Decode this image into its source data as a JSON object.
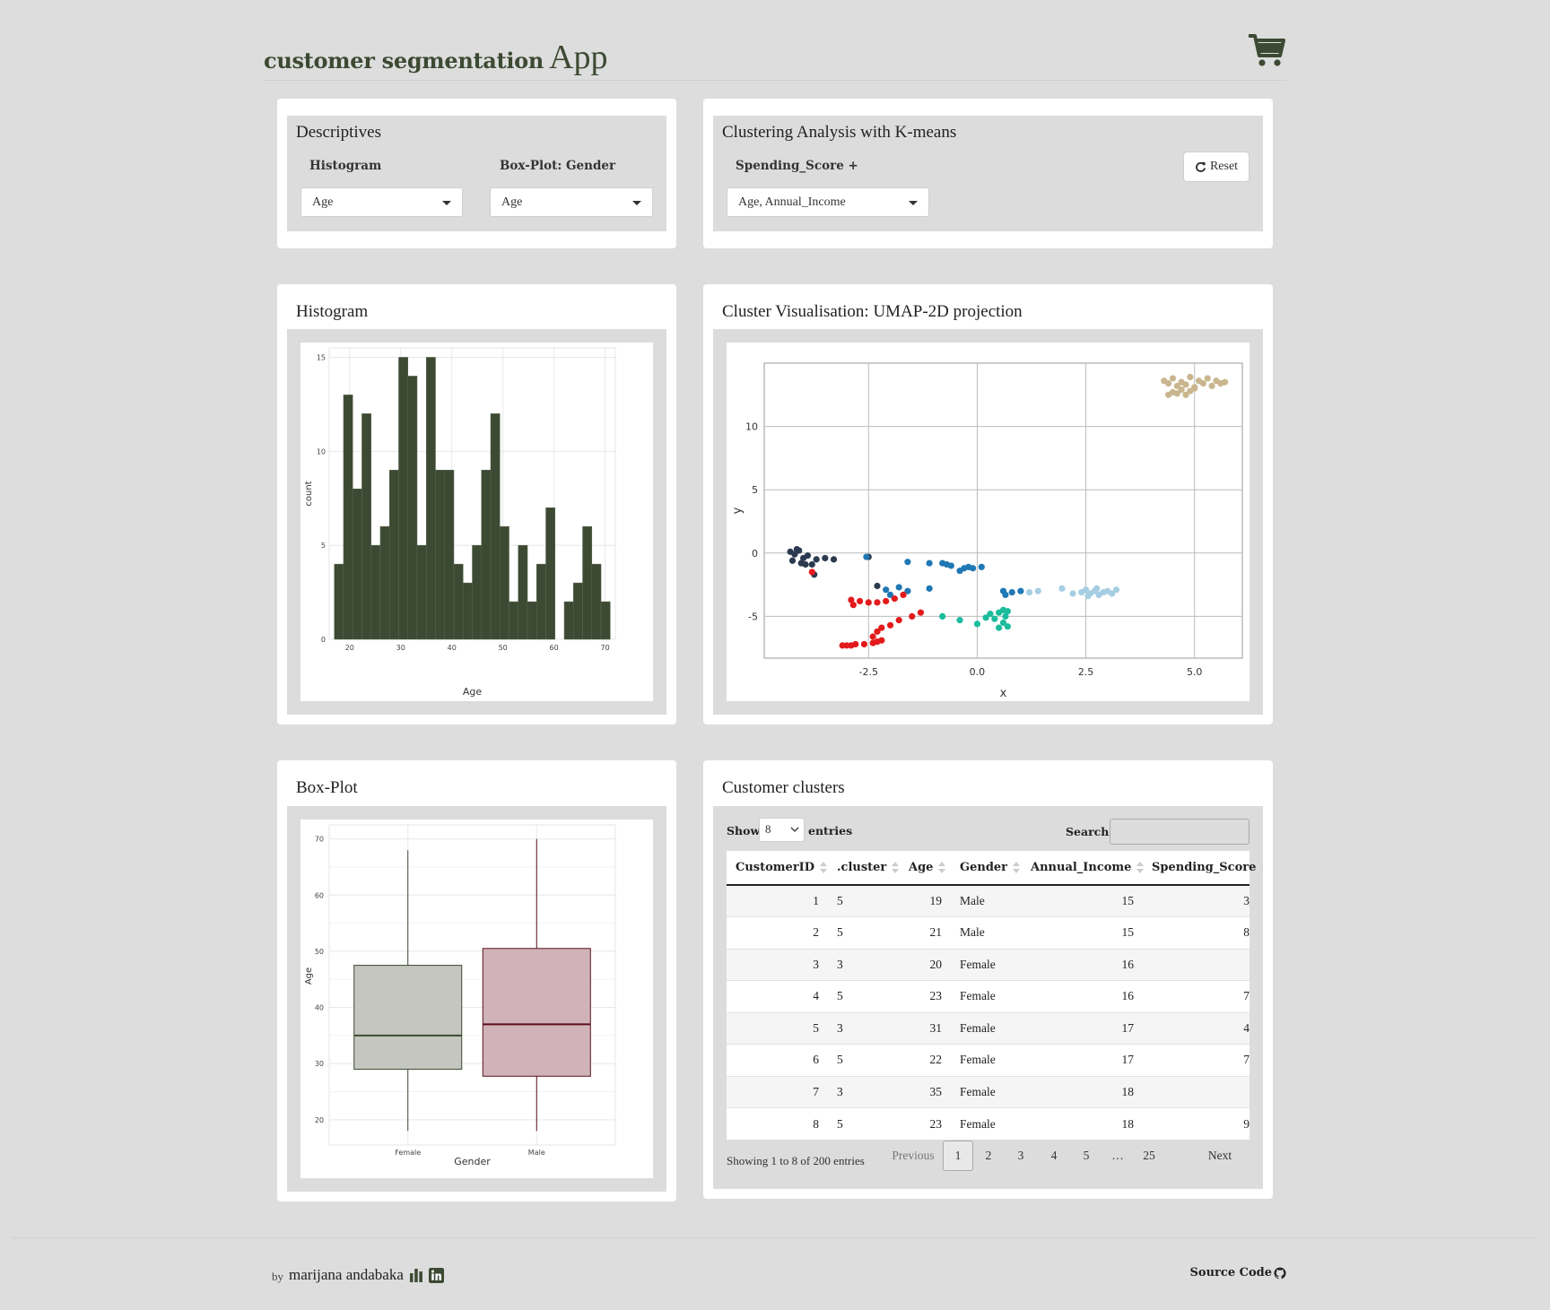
{
  "app": {
    "title_bold": "customer segmentation",
    "title_rest": "App"
  },
  "descriptives": {
    "title": "Descriptives",
    "hist_label": "Histogram",
    "box_label": "Box-Plot: Gender",
    "hist_value": "Age",
    "box_value": "Age"
  },
  "clustering": {
    "title": "Clustering Analysis with K-means",
    "var_label": "Spending_Score +",
    "var_value": "Age, Annual_Income",
    "reset_label": "Reset"
  },
  "histogram_card": {
    "title": "Histogram"
  },
  "umap_card": {
    "title": "Cluster Visualisation: UMAP-2D projection"
  },
  "boxplot_card": {
    "title": "Box-Plot"
  },
  "clusters_card": {
    "title": "Customer clusters"
  },
  "colors": {
    "accent": "#3d4a33",
    "female_box": "#c4c6bf",
    "male_box": "#cfb3b9",
    "male_line": "#5a0f1a"
  },
  "table": {
    "show_label": "Show",
    "show_value": "8",
    "entries_label": "entries",
    "search_label": "Search:",
    "columns": [
      "CustomerID",
      ".cluster",
      "Age",
      "Gender",
      "Annual_Income",
      "Spending_Score"
    ],
    "rows": [
      [
        "1",
        "5",
        "19",
        "Male",
        "15",
        "3"
      ],
      [
        "2",
        "5",
        "21",
        "Male",
        "15",
        "8"
      ],
      [
        "3",
        "3",
        "20",
        "Female",
        "16",
        ""
      ],
      [
        "4",
        "5",
        "23",
        "Female",
        "16",
        "7"
      ],
      [
        "5",
        "3",
        "31",
        "Female",
        "17",
        "4"
      ],
      [
        "6",
        "5",
        "22",
        "Female",
        "17",
        "7"
      ],
      [
        "7",
        "3",
        "35",
        "Female",
        "18",
        ""
      ],
      [
        "8",
        "5",
        "23",
        "Female",
        "18",
        "9"
      ]
    ],
    "info": "Showing 1 to 8 of 200 entries",
    "prev": "Previous",
    "next": "Next",
    "pages": [
      "1",
      "2",
      "3",
      "4",
      "5",
      "…",
      "25"
    ]
  },
  "footer": {
    "by": "by",
    "author": "marijana andabaka",
    "source": "Source Code"
  },
  "chart_data": [
    {
      "type": "bar",
      "xlabel": "Age",
      "ylabel": "count",
      "x_ticks": [
        "20",
        "30",
        "40",
        "50",
        "60",
        "70"
      ],
      "y_ticks": [
        "0",
        "5",
        "10",
        "15"
      ],
      "xlim": [
        16,
        72
      ],
      "ylim": [
        0,
        15.5
      ],
      "bin_start": 17,
      "bin_width": 1.8,
      "values": [
        4,
        13,
        8,
        12,
        5,
        6,
        9,
        15,
        14,
        5,
        15,
        9,
        9,
        4,
        3,
        5,
        9,
        12,
        6,
        2,
        5,
        2,
        4,
        7,
        0,
        2,
        3,
        6,
        4,
        2
      ]
    },
    {
      "type": "scatter",
      "xlabel": "x",
      "ylabel": "y",
      "x_ticks": [
        "-2.5",
        "0.0",
        "2.5",
        "5.0"
      ],
      "y_ticks": [
        "-5",
        "0",
        "5",
        "10"
      ],
      "xlim": [
        -4.9,
        6.1
      ],
      "ylim": [
        -8.3,
        15
      ],
      "series": [
        {
          "color": "#2b3a4f",
          "points": [
            [
              -4.3,
              0.1
            ],
            [
              -4.2,
              -0.1
            ],
            [
              -4.1,
              0.2
            ],
            [
              -4.0,
              -0.4
            ],
            [
              -3.9,
              -0.2
            ],
            [
              -4.25,
              -0.6
            ],
            [
              -4.05,
              -0.8
            ],
            [
              -3.8,
              -0.9
            ],
            [
              -3.7,
              -0.5
            ],
            [
              -3.75,
              -1.7
            ],
            [
              -3.5,
              -0.4
            ],
            [
              -3.3,
              -0.5
            ],
            [
              -4.15,
              0.3
            ],
            [
              -3.95,
              -0.9
            ],
            [
              -2.3,
              -2.6
            ],
            [
              -2.5,
              -0.3
            ]
          ]
        },
        {
          "color": "#1f78b4",
          "points": [
            [
              -2.55,
              -0.3
            ],
            [
              -1.6,
              -0.7
            ],
            [
              -1.1,
              -0.8
            ],
            [
              -0.8,
              -0.8
            ],
            [
              -0.7,
              -0.9
            ],
            [
              -0.6,
              -1.0
            ],
            [
              -0.4,
              -1.4
            ],
            [
              -0.3,
              -1.2
            ],
            [
              -0.2,
              -1.1
            ],
            [
              -0.1,
              -1.2
            ],
            [
              0.1,
              -1.1
            ],
            [
              -2.1,
              -2.9
            ],
            [
              -1.8,
              -2.7
            ],
            [
              -1.6,
              -3.0
            ],
            [
              -2.0,
              -3.3
            ],
            [
              -1.1,
              -2.8
            ],
            [
              0.6,
              -3.0
            ],
            [
              0.8,
              -3.1
            ],
            [
              1.0,
              -3.0
            ],
            [
              0.65,
              -3.3
            ]
          ]
        },
        {
          "color": "#a6cee3",
          "points": [
            [
              1.2,
              -3.1
            ],
            [
              1.4,
              -3.0
            ],
            [
              1.95,
              -2.8
            ],
            [
              2.2,
              -3.2
            ],
            [
              2.4,
              -3.1
            ],
            [
              2.5,
              -2.9
            ],
            [
              2.6,
              -3.2
            ],
            [
              2.7,
              -3.0
            ],
            [
              2.8,
              -3.3
            ],
            [
              2.9,
              -3.1
            ],
            [
              3.0,
              -3.0
            ],
            [
              3.1,
              -3.2
            ],
            [
              3.2,
              -2.9
            ],
            [
              2.55,
              -3.4
            ],
            [
              2.75,
              -2.8
            ]
          ]
        },
        {
          "color": "#1abc9c",
          "points": [
            [
              -0.8,
              -5.0
            ],
            [
              -0.4,
              -5.3
            ],
            [
              0.0,
              -5.6
            ],
            [
              0.2,
              -5.1
            ],
            [
              0.3,
              -4.8
            ],
            [
              0.4,
              -5.2
            ],
            [
              0.5,
              -4.7
            ],
            [
              0.6,
              -5.5
            ],
            [
              0.5,
              -5.9
            ],
            [
              0.7,
              -5.8
            ],
            [
              0.6,
              -4.5
            ],
            [
              0.7,
              -4.6
            ],
            [
              0.65,
              -5.0
            ]
          ]
        },
        {
          "color": "#e31a1c",
          "points": [
            [
              -3.1,
              -7.3
            ],
            [
              -3.0,
              -7.3
            ],
            [
              -2.9,
              -7.3
            ],
            [
              -2.8,
              -7.2
            ],
            [
              -2.6,
              -7.2
            ],
            [
              -2.4,
              -7.1
            ],
            [
              -2.3,
              -7.0
            ],
            [
              -2.2,
              -6.9
            ],
            [
              -2.4,
              -6.6
            ],
            [
              -2.3,
              -6.2
            ],
            [
              -2.2,
              -5.9
            ],
            [
              -2.0,
              -5.7
            ],
            [
              -1.8,
              -5.3
            ],
            [
              -1.5,
              -5.0
            ],
            [
              -1.3,
              -4.7
            ],
            [
              -2.9,
              -3.7
            ],
            [
              -2.7,
              -3.8
            ],
            [
              -2.5,
              -3.9
            ],
            [
              -2.3,
              -3.9
            ],
            [
              -2.1,
              -3.8
            ],
            [
              -1.9,
              -3.6
            ],
            [
              -1.7,
              -3.3
            ],
            [
              -2.85,
              -4.1
            ],
            [
              -3.8,
              -1.5
            ]
          ]
        },
        {
          "color": "#c9b68e",
          "points": [
            [
              4.3,
              13.6
            ],
            [
              4.4,
              13.4
            ],
            [
              4.5,
              13.8
            ],
            [
              4.6,
              13.2
            ],
            [
              4.7,
              13.5
            ],
            [
              4.8,
              13.3
            ],
            [
              4.9,
              13.9
            ],
            [
              5.0,
              13.1
            ],
            [
              5.1,
              13.6
            ],
            [
              5.2,
              13.4
            ],
            [
              5.3,
              13.8
            ],
            [
              5.4,
              13.2
            ],
            [
              5.5,
              13.6
            ],
            [
              5.6,
              13.4
            ],
            [
              5.7,
              13.5
            ],
            [
              4.4,
              12.5
            ],
            [
              4.5,
              12.7
            ],
            [
              4.6,
              12.6
            ],
            [
              4.7,
              12.9
            ],
            [
              4.8,
              12.5
            ],
            [
              4.9,
              12.8
            ],
            [
              5.0,
              13.0
            ]
          ]
        }
      ]
    },
    {
      "type": "boxplot",
      "xlabel": "Gender",
      "ylabel": "Age",
      "categories": [
        "Female",
        "Male"
      ],
      "y_ticks": [
        "20",
        "30",
        "40",
        "50",
        "60",
        "70"
      ],
      "ylim": [
        15.5,
        72.5
      ],
      "series": [
        {
          "name": "Female",
          "min": 18,
          "q1": 29,
          "median": 35,
          "q3": 47.5,
          "max": 68
        },
        {
          "name": "Male",
          "min": 18,
          "q1": 27.75,
          "median": 37,
          "q3": 50.5,
          "max": 70
        }
      ]
    }
  ]
}
